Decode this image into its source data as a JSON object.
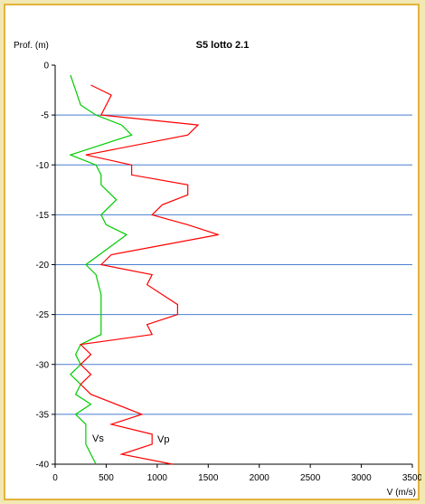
{
  "chart_data": {
    "type": "line",
    "title": "S5 lotto 2.1",
    "ylabel": "Prof. (m)",
    "xlabel": "V (m/s)",
    "xlim": [
      0,
      3500
    ],
    "ylim": [
      -40,
      0
    ],
    "x_ticks": [
      0,
      500,
      1000,
      1500,
      2000,
      2500,
      3000,
      3500
    ],
    "y_ticks": [
      0,
      -5,
      -10,
      -15,
      -20,
      -25,
      -30,
      -35,
      -40
    ],
    "grid": "horizontal",
    "series": [
      {
        "name": "Vs",
        "color": "#00cc00",
        "points": [
          [
            150,
            -1
          ],
          [
            200,
            -2.5
          ],
          [
            250,
            -4
          ],
          [
            400,
            -5
          ],
          [
            650,
            -6
          ],
          [
            750,
            -7
          ],
          [
            300,
            -8.5
          ],
          [
            150,
            -9
          ],
          [
            400,
            -10
          ],
          [
            450,
            -11
          ],
          [
            450,
            -12
          ],
          [
            600,
            -13.5
          ],
          [
            450,
            -15
          ],
          [
            500,
            -16
          ],
          [
            700,
            -17
          ],
          [
            500,
            -18.5
          ],
          [
            300,
            -20
          ],
          [
            400,
            -21
          ],
          [
            450,
            -23
          ],
          [
            450,
            -25
          ],
          [
            450,
            -27
          ],
          [
            250,
            -28
          ],
          [
            200,
            -29
          ],
          [
            250,
            -30
          ],
          [
            150,
            -31
          ],
          [
            250,
            -32
          ],
          [
            200,
            -33
          ],
          [
            350,
            -34
          ],
          [
            200,
            -35
          ],
          [
            300,
            -36
          ],
          [
            300,
            -38
          ],
          [
            400,
            -40
          ]
        ]
      },
      {
        "name": "Vp",
        "color": "#ff0000",
        "points": [
          [
            350,
            -2
          ],
          [
            550,
            -3
          ],
          [
            450,
            -5
          ],
          [
            1400,
            -6
          ],
          [
            1300,
            -7
          ],
          [
            300,
            -9
          ],
          [
            750,
            -10
          ],
          [
            750,
            -11
          ],
          [
            1300,
            -12
          ],
          [
            1300,
            -13
          ],
          [
            1050,
            -14
          ],
          [
            950,
            -15
          ],
          [
            1300,
            -16
          ],
          [
            1600,
            -17
          ],
          [
            550,
            -19
          ],
          [
            450,
            -20
          ],
          [
            950,
            -21
          ],
          [
            900,
            -22
          ],
          [
            1200,
            -24
          ],
          [
            1200,
            -25
          ],
          [
            900,
            -26
          ],
          [
            950,
            -27
          ],
          [
            250,
            -28
          ],
          [
            350,
            -29
          ],
          [
            250,
            -30
          ],
          [
            350,
            -31
          ],
          [
            250,
            -32
          ],
          [
            350,
            -33
          ],
          [
            850,
            -35
          ],
          [
            550,
            -36
          ],
          [
            950,
            -37
          ],
          [
            950,
            -38
          ],
          [
            650,
            -39
          ],
          [
            1150,
            -40
          ]
        ]
      }
    ],
    "annotations": [
      "Vs",
      "Vp"
    ]
  }
}
